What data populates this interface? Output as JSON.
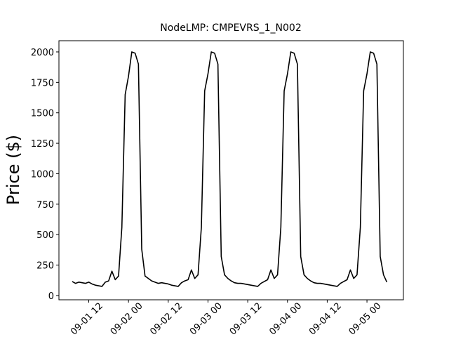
{
  "chart_data": {
    "type": "line",
    "title": "NodeLMP: CMPEVRS_1_N002",
    "y_label": "Price ($)",
    "x": [
      "09-01 07",
      "09-01 08",
      "09-01 09",
      "09-01 10",
      "09-01 11",
      "09-01 12",
      "09-01 13",
      "09-01 14",
      "09-01 15",
      "09-01 16",
      "09-01 17",
      "09-01 18",
      "09-01 19",
      "09-01 20",
      "09-01 21",
      "09-01 22",
      "09-01 23",
      "09-02 00",
      "09-02 01",
      "09-02 02",
      "09-02 03",
      "09-02 04",
      "09-02 05",
      "09-02 06",
      "09-02 07",
      "09-02 08",
      "09-02 09",
      "09-02 10",
      "09-02 11",
      "09-02 12",
      "09-02 13",
      "09-02 14",
      "09-02 15",
      "09-02 16",
      "09-02 17",
      "09-02 18",
      "09-02 19",
      "09-02 20",
      "09-02 21",
      "09-02 22",
      "09-02 23",
      "09-03 00",
      "09-03 01",
      "09-03 02",
      "09-03 03",
      "09-03 04",
      "09-03 05",
      "09-03 06",
      "09-03 07",
      "09-03 08",
      "09-03 09",
      "09-03 10",
      "09-03 11",
      "09-03 12",
      "09-03 13",
      "09-03 14",
      "09-03 15",
      "09-03 16",
      "09-03 17",
      "09-03 18",
      "09-03 19",
      "09-03 20",
      "09-03 21",
      "09-03 22",
      "09-03 23",
      "09-04 00",
      "09-04 01",
      "09-04 02",
      "09-04 03",
      "09-04 04",
      "09-04 05",
      "09-04 06",
      "09-04 07",
      "09-04 08",
      "09-04 09",
      "09-04 10",
      "09-04 11",
      "09-04 12",
      "09-04 13",
      "09-04 14",
      "09-04 15",
      "09-04 16",
      "09-04 17",
      "09-04 18",
      "09-04 19",
      "09-04 20",
      "09-04 21",
      "09-04 22",
      "09-04 23",
      "09-05 00",
      "09-05 01",
      "09-05 02",
      "09-05 03",
      "09-05 04",
      "09-05 05",
      "09-05 06"
    ],
    "series": [
      {
        "name": "CMPEVRS_1_N002",
        "color": "#000000",
        "values": [
          115,
          100,
          110,
          105,
          100,
          110,
          95,
          85,
          80,
          75,
          110,
          120,
          200,
          130,
          160,
          560,
          1650,
          1800,
          2000,
          1990,
          1900,
          380,
          160,
          140,
          120,
          110,
          100,
          105,
          100,
          95,
          85,
          80,
          75,
          105,
          120,
          130,
          210,
          140,
          170,
          560,
          1680,
          1820,
          2000,
          1990,
          1900,
          320,
          170,
          140,
          120,
          105,
          100,
          100,
          95,
          90,
          85,
          80,
          75,
          100,
          115,
          130,
          210,
          140,
          170,
          560,
          1680,
          1820,
          2000,
          1990,
          1900,
          320,
          170,
          140,
          120,
          105,
          100,
          100,
          95,
          90,
          85,
          80,
          75,
          100,
          115,
          130,
          210,
          140,
          170,
          560,
          1680,
          1820,
          2000,
          1990,
          1900,
          320,
          170,
          110
        ]
      }
    ],
    "xlim": [
      "09-01 03",
      "09-05 11"
    ],
    "xticks": [
      "09-01 12",
      "09-02 00",
      "09-02 12",
      "09-03 00",
      "09-03 12",
      "09-04 00",
      "09-04 12",
      "09-05 00"
    ],
    "ylim": [
      -35,
      2092
    ],
    "yticks": [
      0,
      250,
      500,
      750,
      1000,
      1250,
      1500,
      1750,
      2000
    ]
  }
}
